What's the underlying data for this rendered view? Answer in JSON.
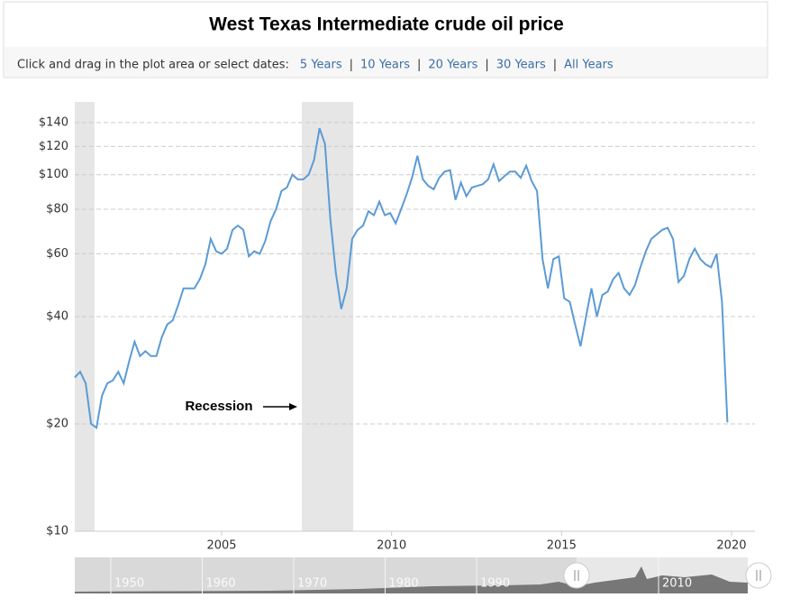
{
  "chart_data": {
    "type": "line",
    "title": "West Texas Intermediate crude oil price",
    "x": [
      2000.68,
      2000.84,
      2001.0,
      2001.16,
      2001.32,
      2001.48,
      2001.64,
      2001.8,
      2001.96,
      2002.12,
      2002.28,
      2002.44,
      2002.6,
      2002.76,
      2002.92,
      2003.08,
      2003.24,
      2003.4,
      2003.56,
      2003.72,
      2003.88,
      2004.04,
      2004.2,
      2004.36,
      2004.52,
      2004.68,
      2004.84,
      2005.0,
      2005.16,
      2005.32,
      2005.48,
      2005.64,
      2005.8,
      2005.96,
      2006.12,
      2006.28,
      2006.44,
      2006.6,
      2006.76,
      2006.92,
      2007.08,
      2007.24,
      2007.4,
      2007.56,
      2007.72,
      2007.88,
      2008.04,
      2008.2,
      2008.36,
      2008.52,
      2008.68,
      2008.84,
      2009.0,
      2009.16,
      2009.32,
      2009.48,
      2009.64,
      2009.8,
      2009.96,
      2010.12,
      2010.28,
      2010.44,
      2010.6,
      2010.76,
      2010.92,
      2011.08,
      2011.24,
      2011.4,
      2011.56,
      2011.72,
      2011.88,
      2012.04,
      2012.2,
      2012.36,
      2012.52,
      2012.68,
      2012.84,
      2013.0,
      2013.16,
      2013.32,
      2013.48,
      2013.64,
      2013.8,
      2013.96,
      2014.12,
      2014.28,
      2014.44,
      2014.6,
      2014.76,
      2014.92,
      2015.08,
      2015.24,
      2015.4,
      2015.56,
      2015.72,
      2015.88,
      2016.04,
      2016.2,
      2016.36,
      2016.52,
      2016.68,
      2016.84,
      2017.0,
      2017.16,
      2017.32,
      2017.48,
      2017.64,
      2017.8,
      2017.96,
      2018.12,
      2018.28,
      2018.44,
      2018.6,
      2018.76,
      2018.92,
      2019.08,
      2019.24,
      2019.4,
      2019.56,
      2019.72,
      2019.88
    ],
    "values": [
      27,
      28,
      26,
      20,
      19.5,
      24,
      26,
      26.5,
      28,
      26,
      30,
      34,
      31,
      32,
      31,
      31,
      35,
      38,
      39,
      43,
      48,
      48,
      48,
      51,
      56,
      66,
      61,
      60,
      62,
      70,
      72,
      70,
      59,
      61,
      60,
      65,
      74,
      80,
      90,
      92,
      100,
      97,
      97,
      100,
      110,
      135,
      122,
      75,
      53,
      42,
      48,
      66,
      70,
      72,
      79,
      77,
      84,
      77,
      78,
      73,
      80,
      88,
      98,
      113,
      97,
      93,
      91,
      98,
      102,
      103,
      85,
      95,
      87,
      92,
      93,
      94,
      97,
      107,
      96,
      99,
      102,
      102,
      98,
      106,
      96,
      90,
      58,
      48,
      58,
      59,
      45,
      44,
      38,
      33,
      40,
      48,
      40,
      46,
      47,
      51,
      53,
      48,
      46,
      49,
      55,
      61,
      66,
      68,
      70,
      71,
      66,
      50,
      52,
      58,
      62,
      58,
      56,
      55,
      60,
      44,
      20.2
    ],
    "color": "#5b9bd5",
    "xlim": [
      2000.68,
      2020.69
    ],
    "xticks": [
      2005,
      2010,
      2015,
      2020
    ],
    "ylim": [
      10,
      160
    ],
    "log_scale": true,
    "yticks": [
      {
        "value": 10,
        "label": "$10"
      },
      {
        "value": 20,
        "label": "$20"
      },
      {
        "value": 40,
        "label": "$40"
      },
      {
        "value": 60,
        "label": "$60"
      },
      {
        "value": 80,
        "label": "$80"
      },
      {
        "value": 100,
        "label": "$100"
      },
      {
        "value": 120,
        "label": "$120"
      },
      {
        "value": 140,
        "label": "$140"
      }
    ],
    "grid": true,
    "recessions": [
      [
        2000.68,
        2001.26
      ],
      [
        2007.36,
        2008.87
      ]
    ],
    "annotation": "Recession"
  },
  "range_selector": {
    "prompt": "Click and drag in the plot area or select dates:",
    "options": [
      "5 Years",
      "10 Years",
      "20 Years",
      "30 Years",
      "All Years"
    ],
    "separator": "|"
  },
  "navigator_labels": [
    "1950",
    "1960",
    "1970",
    "1980",
    "1990",
    "2010"
  ]
}
